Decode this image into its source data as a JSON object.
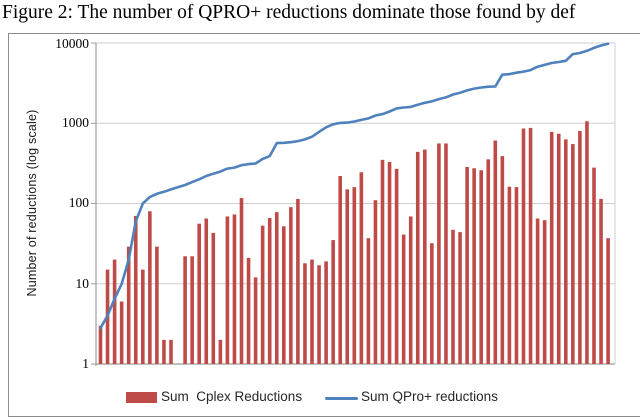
{
  "figure": {
    "caption": "Figure 2: The number of QPRO+ reductions dominate those found by def"
  },
  "chart_data": {
    "type": "combo",
    "y_scale": "log",
    "ylim": [
      1,
      10000
    ],
    "ylabel": "Number of reductions (log scale)",
    "y_ticks": [
      "1",
      "10",
      "100",
      "1000",
      "10000"
    ],
    "grid": "horizontal-major",
    "legend_position": "bottom",
    "series": [
      {
        "name": "Sum  Cplex Reductions",
        "type": "bar",
        "color": "#BE4B48",
        "values": [
          3,
          15,
          20,
          6,
          29,
          70,
          15,
          80,
          29,
          2,
          2,
          1,
          22,
          22,
          56,
          65,
          43,
          2,
          69,
          73,
          117,
          21,
          12,
          53,
          66,
          78,
          52,
          90,
          114,
          18,
          20,
          17,
          19,
          35,
          220,
          150,
          160,
          245,
          37,
          110,
          350,
          330,
          270,
          41,
          69,
          440,
          470,
          32,
          560,
          560,
          47,
          44,
          285,
          275,
          260,
          355,
          610,
          390,
          162,
          160,
          860,
          875,
          65,
          62,
          780,
          740,
          630,
          550,
          800,
          1060,
          280,
          114,
          37
        ]
      },
      {
        "name": "Sum QPro+ reductions",
        "type": "line",
        "color": "#4F81BD",
        "values": [
          2.8,
          4,
          6.5,
          10,
          20,
          60,
          100,
          120,
          132,
          140,
          150,
          160,
          170,
          185,
          200,
          220,
          235,
          250,
          272,
          280,
          300,
          310,
          315,
          360,
          390,
          565,
          570,
          580,
          600,
          630,
          680,
          780,
          890,
          970,
          1010,
          1020,
          1050,
          1100,
          1150,
          1250,
          1300,
          1400,
          1530,
          1570,
          1600,
          1700,
          1800,
          1870,
          2000,
          2100,
          2280,
          2400,
          2570,
          2700,
          2790,
          2850,
          2870,
          4030,
          4100,
          4270,
          4400,
          4600,
          5070,
          5330,
          5630,
          5800,
          6000,
          7280,
          7500,
          8000,
          8700,
          9300,
          9800
        ]
      }
    ]
  },
  "colors": {
    "bar": "#BE4B48",
    "line": "#4F81BD",
    "gridline": "#CFCFCF",
    "axis": "#9C9C9C",
    "frame_border": "#8C8C8C",
    "text": "#000000"
  }
}
